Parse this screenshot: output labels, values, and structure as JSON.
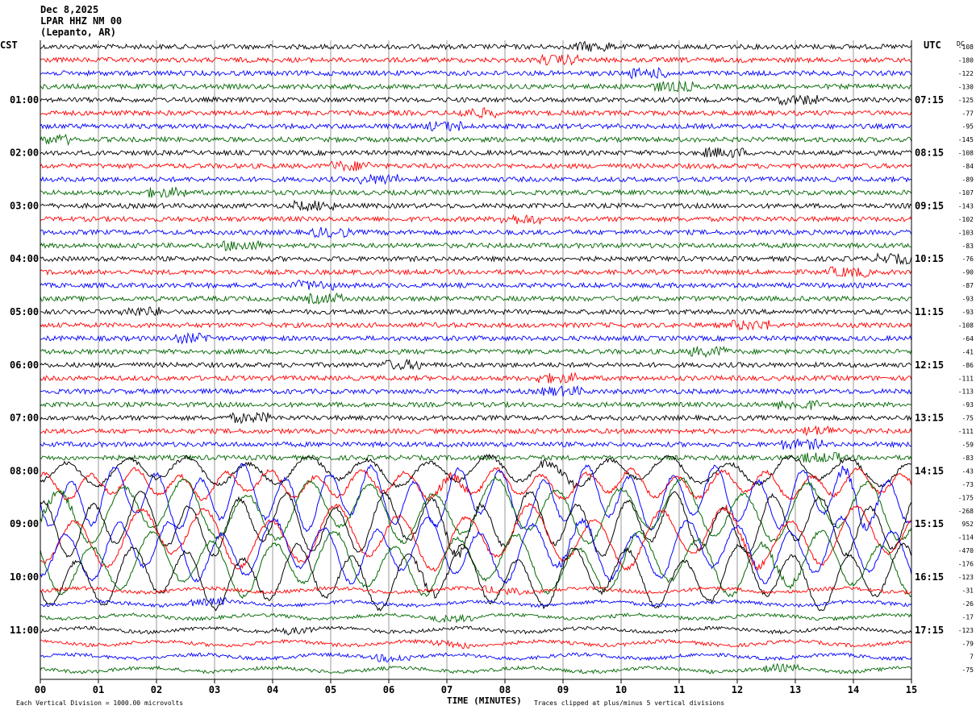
{
  "header": {
    "date": "Dec 8,2025",
    "station": "LPAR HHZ NM 00",
    "location": "(Lepanto, AR)"
  },
  "left_timezone": "CST",
  "right_timezone": "UTC",
  "dc_label": "DC",
  "footer": {
    "scale_note": "Each Vertical Division = 1000.00 microvolts",
    "xlabel": "TIME (MINUTES)",
    "clip_note": "Traces clipped at plus/minus 5 vertical divisions"
  },
  "colors": [
    "#000000",
    "#ff0000",
    "#0000ff",
    "#006600"
  ],
  "chart_data": {
    "type": "line",
    "title": "LPAR HHZ NM 00",
    "xlabel": "TIME (MINUTES)",
    "xlim": [
      0,
      15
    ],
    "x_ticks": [
      "00",
      "01",
      "02",
      "03",
      "04",
      "05",
      "06",
      "07",
      "08",
      "09",
      "10",
      "11",
      "12",
      "13",
      "14",
      "15"
    ],
    "left_hour_labels": [
      "01:00",
      "02:00",
      "03:00",
      "04:00",
      "05:00",
      "06:00",
      "07:00",
      "08:00",
      "09:00",
      "10:00",
      "11:00"
    ],
    "right_hour_labels": [
      "07:15",
      "08:15",
      "09:15",
      "10:15",
      "11:15",
      "12:15",
      "13:15",
      "14:15",
      "15:15",
      "16:15",
      "17:15"
    ],
    "dc_offsets": [
      -108,
      -180,
      -122,
      -130,
      -125,
      -77,
      -95,
      -145,
      -108,
      -84,
      -89,
      -107,
      -143,
      -102,
      -103,
      -83,
      -76,
      -90,
      -87,
      -93,
      -93,
      -108,
      -64,
      -41,
      -86,
      -111,
      -113,
      -93,
      -75,
      -111,
      -59,
      -83,
      -43,
      -73,
      -175,
      -268,
      952,
      -114,
      -470,
      -176,
      -123,
      -31,
      -26,
      -17,
      -123,
      -79,
      7,
      -75
    ],
    "trace_count": 48,
    "trace_minutes": 15,
    "activity": {
      "description_free": true,
      "large_signal_traces": [
        32,
        33,
        34,
        35,
        36,
        37,
        38,
        39,
        40
      ]
    }
  }
}
